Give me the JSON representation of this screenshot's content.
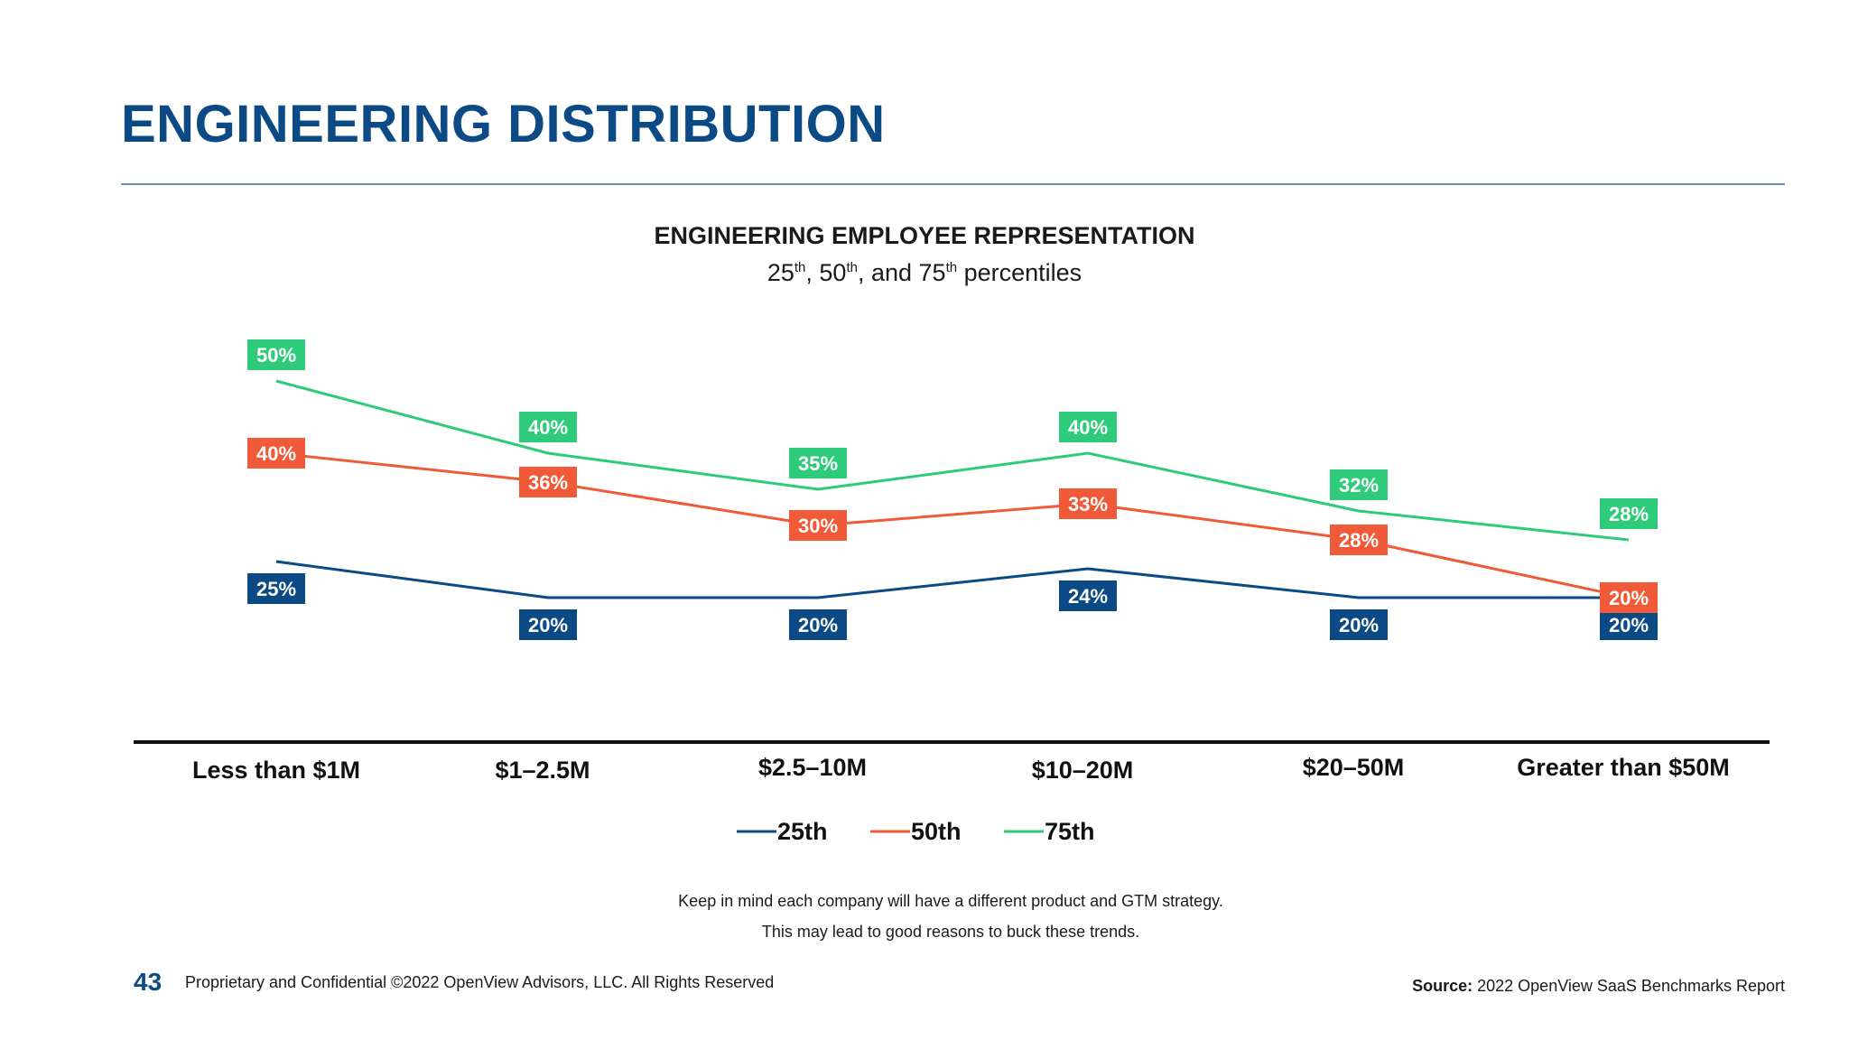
{
  "page": {
    "title": "ENGINEERING DISTRIBUTION",
    "note_line1": "Keep in mind each company will have a different product and GTM strategy.",
    "note_line2": "This may lead to good reasons to buck these trends.",
    "page_number": "43",
    "copyright": "Proprietary and Confidential ©2022 OpenView Advisors, LLC. All Rights Reserved",
    "source_label": "Source:",
    "source_text": "2022 OpenView SaaS Benchmarks Report"
  },
  "chart_data": {
    "type": "line",
    "title": "ENGINEERING EMPLOYEE REPRESENTATION",
    "subtitle_parts": [
      "25",
      "th",
      ", 50",
      "th",
      ", and 75",
      "th",
      " percentiles"
    ],
    "categories": [
      "Less than $1M",
      "$1–2.5M",
      "$2.5–10M",
      "$10–20M",
      "$20–50M",
      "Greater than $50M"
    ],
    "ylim": [
      0,
      55
    ],
    "grid": false,
    "legend_position": "bottom",
    "series": [
      {
        "name": "25th",
        "color": "#0b4a84",
        "values": [
          25,
          20,
          20,
          24,
          20,
          20
        ],
        "labels": [
          "25%",
          "20%",
          "20%",
          "24%",
          "20%",
          "20%"
        ]
      },
      {
        "name": "50th",
        "color": "#f05a38",
        "values": [
          40,
          36,
          30,
          33,
          28,
          20
        ],
        "labels": [
          "40%",
          "36%",
          "30%",
          "33%",
          "28%",
          "20%"
        ]
      },
      {
        "name": "75th",
        "color": "#2ecc7a",
        "values": [
          50,
          40,
          35,
          40,
          32,
          28
        ],
        "labels": [
          "50%",
          "40%",
          "35%",
          "40%",
          "32%",
          "28%"
        ]
      }
    ]
  }
}
